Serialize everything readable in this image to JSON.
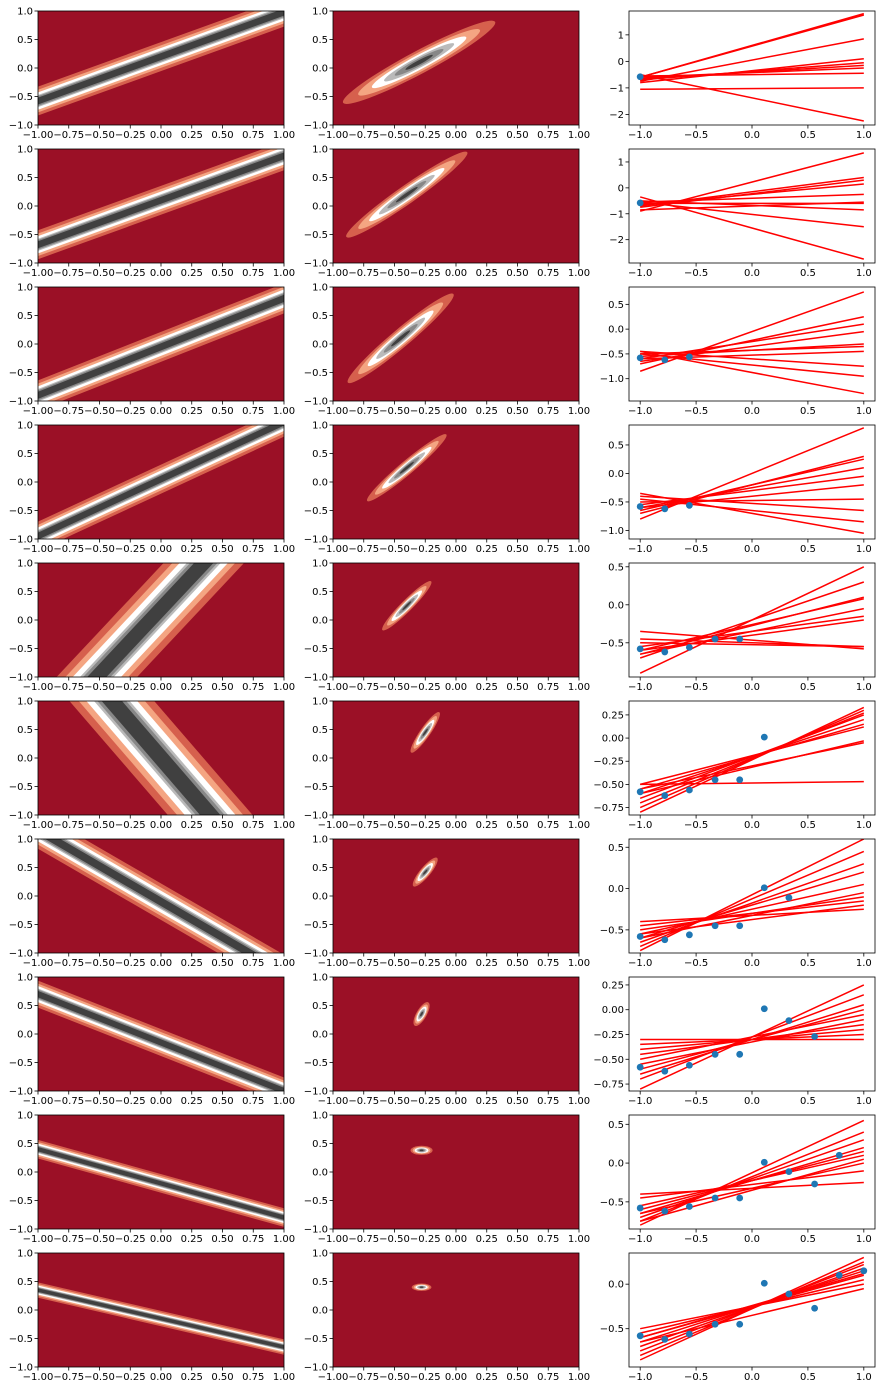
{
  "colors": {
    "background": "#ffffff",
    "line": "#ff0000",
    "point": "#1f77b4",
    "contour_levels": [
      "#9b1026",
      "#d6604d",
      "#f4a582",
      "#ffffff",
      "#bababa",
      "#878787",
      "#404040"
    ]
  },
  "chart_data": {
    "type": "grid",
    "rows": 10,
    "columns": [
      "likelihood-contour",
      "posterior-contour",
      "sampled-lines"
    ],
    "contour_axes": {
      "xlim": [
        -1,
        1
      ],
      "ylim": [
        -1,
        1
      ],
      "xticks": [
        -1.0,
        -0.75,
        -0.5,
        -0.25,
        0.0,
        0.25,
        0.5,
        0.75,
        1.0
      ],
      "xtick_labels": [
        "−1.00",
        "−0.75",
        "−0.50",
        "−0.25",
        "0.00",
        "0.25",
        "0.50",
        "0.75",
        "1.00"
      ],
      "yticks": [
        -1.0,
        -0.5,
        0.0,
        0.5,
        1.0
      ],
      "ytick_labels": [
        "−1.0",
        "−0.5",
        "0.0",
        "0.5",
        "1.0"
      ]
    },
    "likelihood": [
      {
        "intercept": 0.2,
        "slope": 0.78,
        "width": 0.2
      },
      {
        "intercept": 0.1,
        "slope": 0.78,
        "width": 0.2
      },
      {
        "intercept": -0.05,
        "slope": 0.85,
        "width": 0.2
      },
      {
        "intercept": 0.05,
        "slope": 1.0,
        "width": 0.18
      },
      {
        "intercept": 0.2,
        "slope": 2.3,
        "width": 0.3
      },
      {
        "intercept": 0.0,
        "slope": -2.5,
        "width": 0.32
      },
      {
        "intercept": -0.1,
        "slope": -1.25,
        "width": 0.2
      },
      {
        "intercept": -0.15,
        "slope": -0.85,
        "width": 0.18
      },
      {
        "intercept": -0.2,
        "slope": -0.6,
        "width": 0.14
      },
      {
        "intercept": -0.15,
        "slope": -0.5,
        "width": 0.12
      }
    ],
    "posterior": [
      {
        "cx": -0.3,
        "cy": 0.1,
        "rx": 0.7,
        "ry": 0.2,
        "angle": 28
      },
      {
        "cx": -0.4,
        "cy": 0.2,
        "rx": 0.6,
        "ry": 0.16,
        "angle": 35
      },
      {
        "cx": -0.45,
        "cy": 0.1,
        "rx": 0.56,
        "ry": 0.16,
        "angle": 40
      },
      {
        "cx": -0.4,
        "cy": 0.25,
        "rx": 0.42,
        "ry": 0.12,
        "angle": 40
      },
      {
        "cx": -0.4,
        "cy": 0.25,
        "rx": 0.28,
        "ry": 0.1,
        "angle": 45
      },
      {
        "cx": -0.25,
        "cy": 0.45,
        "rx": 0.2,
        "ry": 0.09,
        "angle": 55
      },
      {
        "cx": -0.25,
        "cy": 0.42,
        "rx": 0.15,
        "ry": 0.09,
        "angle": 50
      },
      {
        "cx": -0.28,
        "cy": 0.35,
        "rx": 0.11,
        "ry": 0.09,
        "angle": 60
      },
      {
        "cx": -0.28,
        "cy": 0.38,
        "rx": 0.09,
        "ry": 0.08,
        "angle": 0
      },
      {
        "cx": -0.28,
        "cy": 0.4,
        "rx": 0.08,
        "ry": 0.065,
        "angle": 0
      }
    ],
    "data_points": {
      "x": [
        -1.0,
        -0.78,
        -0.56,
        -0.33,
        -0.11,
        0.11,
        0.33,
        0.56,
        0.78,
        1.0
      ],
      "y": [
        -0.58,
        -0.62,
        -0.56,
        -0.45,
        -0.45,
        0.01,
        -0.11,
        -0.27,
        0.1,
        0.15
      ]
    },
    "lines_panels": [
      {
        "n_points": 1,
        "ylim": [
          -2.4,
          1.9
        ],
        "yticks": [
          -2,
          -1,
          0,
          1
        ],
        "ytick_labels": [
          "−2",
          "−1",
          "0",
          "1"
        ],
        "lines": [
          [
            -0.6,
            1.8
          ],
          [
            -0.6,
            1.75
          ],
          [
            -0.75,
            0.85
          ],
          [
            -0.7,
            -0.05
          ],
          [
            -0.65,
            -0.15
          ],
          [
            -0.6,
            -0.25
          ],
          [
            -0.55,
            -0.45
          ],
          [
            -0.8,
            0.1
          ],
          [
            -1.05,
            -1.0
          ],
          [
            -0.5,
            -2.25
          ]
        ]
      },
      {
        "n_points": 1,
        "ylim": [
          -2.9,
          1.5
        ],
        "yticks": [
          -2,
          -1,
          0,
          1
        ],
        "ytick_labels": [
          "−2",
          "−1",
          "0",
          "1"
        ],
        "lines": [
          [
            -0.9,
            1.35
          ],
          [
            -0.7,
            0.4
          ],
          [
            -0.75,
            0.3
          ],
          [
            -0.65,
            0.15
          ],
          [
            -0.55,
            -0.25
          ],
          [
            -0.6,
            -0.6
          ],
          [
            -0.5,
            -0.85
          ],
          [
            -0.85,
            -0.55
          ],
          [
            -0.55,
            -1.5
          ],
          [
            -0.35,
            -2.75
          ]
        ]
      },
      {
        "n_points": 3,
        "ylim": [
          -1.45,
          0.85
        ],
        "yticks": [
          -1.0,
          -0.5,
          0.0,
          0.5
        ],
        "ytick_labels": [
          "−1.0",
          "−0.5",
          "0.0",
          "0.5"
        ],
        "lines": [
          [
            -0.85,
            0.75
          ],
          [
            -0.7,
            0.25
          ],
          [
            -0.6,
            0.1
          ],
          [
            -0.65,
            -0.05
          ],
          [
            -0.55,
            -0.3
          ],
          [
            -0.5,
            -0.35
          ],
          [
            -0.6,
            -0.45
          ],
          [
            -0.45,
            -0.75
          ],
          [
            -0.5,
            -0.95
          ],
          [
            -0.45,
            -1.3
          ]
        ]
      },
      {
        "n_points": 3,
        "ylim": [
          -1.15,
          0.85
        ],
        "yticks": [
          -1.0,
          -0.5,
          0.0,
          0.5
        ],
        "ytick_labels": [
          "−1.0",
          "−0.5",
          "0.0",
          "0.5"
        ],
        "lines": [
          [
            -0.8,
            0.8
          ],
          [
            -0.7,
            0.3
          ],
          [
            -0.65,
            0.25
          ],
          [
            -0.6,
            0.1
          ],
          [
            -0.55,
            -0.05
          ],
          [
            -0.6,
            -0.2
          ],
          [
            -0.5,
            -0.45
          ],
          [
            -0.4,
            -0.65
          ],
          [
            -0.45,
            -0.85
          ],
          [
            -0.35,
            -1.05
          ]
        ]
      },
      {
        "n_points": 5,
        "ylim": [
          -0.95,
          0.55
        ],
        "yticks": [
          -0.5,
          0.0,
          0.5
        ],
        "ytick_labels": [
          "−0.5",
          "0.0",
          "0.5"
        ],
        "lines": [
          [
            -0.9,
            0.5
          ],
          [
            -0.7,
            0.3
          ],
          [
            -0.65,
            0.1
          ],
          [
            -0.6,
            0.08
          ],
          [
            -0.65,
            -0.05
          ],
          [
            -0.55,
            -0.15
          ],
          [
            -0.6,
            -0.2
          ],
          [
            -0.5,
            -0.55
          ],
          [
            -0.45,
            -0.55
          ],
          [
            -0.35,
            -0.58
          ]
        ]
      },
      {
        "n_points": 6,
        "ylim": [
          -0.83,
          0.4
        ],
        "yticks": [
          -0.75,
          -0.5,
          -0.25,
          0.0,
          0.25
        ],
        "ytick_labels": [
          "−0.75",
          "−0.50",
          "−0.25",
          "0.00",
          "0.25"
        ],
        "lines": [
          [
            -0.8,
            0.33
          ],
          [
            -0.75,
            0.3
          ],
          [
            -0.7,
            0.27
          ],
          [
            -0.65,
            0.25
          ],
          [
            -0.6,
            0.2
          ],
          [
            -0.55,
            0.15
          ],
          [
            -0.5,
            0.12
          ],
          [
            -0.6,
            -0.03
          ],
          [
            -0.55,
            -0.05
          ],
          [
            -0.5,
            -0.47
          ]
        ]
      },
      {
        "n_points": 7,
        "ylim": [
          -0.78,
          0.6
        ],
        "yticks": [
          -0.5,
          0.0,
          0.5
        ],
        "ytick_labels": [
          "−0.5",
          "0.0",
          "0.5"
        ],
        "lines": [
          [
            -0.75,
            0.6
          ],
          [
            -0.7,
            0.45
          ],
          [
            -0.65,
            0.3
          ],
          [
            -0.6,
            0.2
          ],
          [
            -0.55,
            0.05
          ],
          [
            -0.6,
            -0.05
          ],
          [
            -0.5,
            -0.1
          ],
          [
            -0.45,
            -0.15
          ],
          [
            -0.55,
            -0.2
          ],
          [
            -0.4,
            -0.25
          ]
        ]
      },
      {
        "n_points": 8,
        "ylim": [
          -0.82,
          0.33
        ],
        "yticks": [
          -0.75,
          -0.5,
          -0.25,
          0.0,
          0.25
        ],
        "ytick_labels": [
          "−0.75",
          "−0.50",
          "−0.25",
          "0.00",
          "0.25"
        ],
        "lines": [
          [
            -0.8,
            0.25
          ],
          [
            -0.7,
            0.15
          ],
          [
            -0.65,
            0.05
          ],
          [
            -0.6,
            0.0
          ],
          [
            -0.5,
            -0.05
          ],
          [
            -0.55,
            -0.1
          ],
          [
            -0.45,
            -0.15
          ],
          [
            -0.4,
            -0.2
          ],
          [
            -0.35,
            -0.25
          ],
          [
            -0.3,
            -0.3
          ]
        ]
      },
      {
        "n_points": 9,
        "ylim": [
          -0.85,
          0.62
        ],
        "yticks": [
          -0.5,
          0.0,
          0.5
        ],
        "ytick_labels": [
          "−0.5",
          "0.0",
          "0.5"
        ],
        "lines": [
          [
            -0.8,
            0.55
          ],
          [
            -0.75,
            0.4
          ],
          [
            -0.7,
            0.3
          ],
          [
            -0.65,
            0.2
          ],
          [
            -0.6,
            0.15
          ],
          [
            -0.55,
            0.1
          ],
          [
            -0.65,
            0.0
          ],
          [
            -0.45,
            -0.1
          ],
          [
            -0.4,
            -0.25
          ],
          [
            -0.75,
            0.05
          ]
        ]
      },
      {
        "n_points": 10,
        "ylim": [
          -0.93,
          0.35
        ],
        "yticks": [
          -0.5,
          0.0
        ],
        "ytick_labels": [
          "−0.5",
          "0.0"
        ],
        "lines": [
          [
            -0.85,
            0.3
          ],
          [
            -0.8,
            0.25
          ],
          [
            -0.75,
            0.22
          ],
          [
            -0.7,
            0.18
          ],
          [
            -0.65,
            0.15
          ],
          [
            -0.6,
            0.1
          ],
          [
            -0.55,
            0.05
          ],
          [
            -0.5,
            0.0
          ],
          [
            -0.65,
            -0.05
          ],
          [
            -0.6,
            0.12
          ]
        ]
      }
    ]
  }
}
